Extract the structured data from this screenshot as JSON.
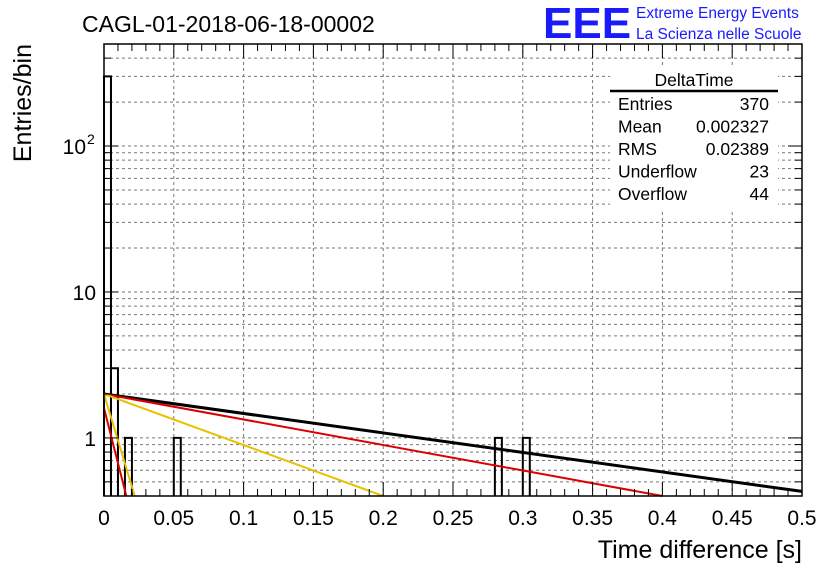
{
  "header": {
    "run_title": "CAGL-01-2018-06-18-00002",
    "logo_text": "EEE",
    "logo_line1": "Extreme Energy Events",
    "logo_line2": "La Scienza nelle Scuole",
    "logo_color": "#1a1aff"
  },
  "stats_box": {
    "title": "DeltaTime",
    "rows": [
      {
        "label": "Entries",
        "value": "370"
      },
      {
        "label": "Mean",
        "value": "0.002327"
      },
      {
        "label": "RMS",
        "value": "0.02389"
      },
      {
        "label": "Underflow",
        "value": "23"
      },
      {
        "label": "Overflow",
        "value": "44"
      }
    ]
  },
  "chart_data": {
    "type": "bar",
    "histogram_name": "DeltaTime",
    "xlabel": "Time difference [s]",
    "ylabel": "Entries/bin",
    "xlim": [
      0,
      0.5
    ],
    "ylim": [
      0.4,
      500
    ],
    "y_scale": "log",
    "grid": true,
    "bin_width": 0.005,
    "x_ticks": [
      "0",
      "0.05",
      "0.1",
      "0.15",
      "0.2",
      "0.25",
      "0.3",
      "0.35",
      "0.4",
      "0.45",
      "0.5"
    ],
    "y_ticks": [
      {
        "value": 1,
        "label": "1",
        "exp": ""
      },
      {
        "value": 10,
        "label": "10",
        "exp": ""
      },
      {
        "value": 100,
        "label": "10",
        "exp": "2"
      }
    ],
    "bins": [
      {
        "x": 0.0,
        "value": 300
      },
      {
        "x": 0.005,
        "value": 3
      },
      {
        "x": 0.015,
        "value": 1
      },
      {
        "x": 0.05,
        "value": 1
      },
      {
        "x": 0.28,
        "value": 1
      },
      {
        "x": 0.3,
        "value": 1
      }
    ],
    "fit_lines": [
      {
        "color": "#000000",
        "points": [
          [
            0,
            2.0
          ],
          [
            0.5,
            0.43
          ]
        ]
      },
      {
        "color": "#dd0000",
        "points": [
          [
            0,
            2.0
          ],
          [
            0.4,
            0.4
          ]
        ]
      },
      {
        "color": "#e8c000",
        "points": [
          [
            0,
            2.0
          ],
          [
            0.2,
            0.4
          ]
        ]
      },
      {
        "color": "#dd0000",
        "points": [
          [
            0,
            1.6
          ],
          [
            0.016,
            0.4
          ]
        ]
      },
      {
        "color": "#e8c000",
        "points": [
          [
            0,
            2.0
          ],
          [
            0.022,
            0.4
          ]
        ]
      }
    ]
  }
}
